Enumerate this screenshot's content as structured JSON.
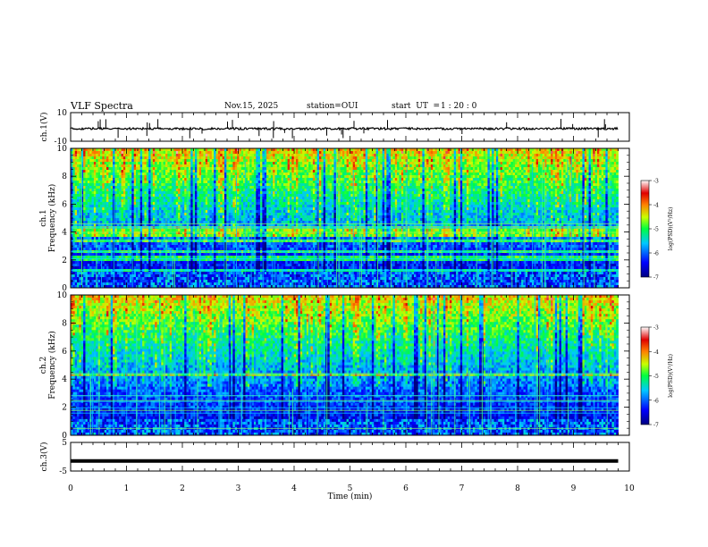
{
  "header": {
    "title": "VLF Spectra",
    "date": "Nov.15, 2025",
    "station": "station=OUI",
    "start_label": "start  UT  =",
    "start_value": "1 : 20 : 0"
  },
  "chart_data": [
    {
      "type": "line",
      "name": "ch1-waveform",
      "ylabel": "ch.1(V)",
      "ylim": [
        -10,
        10
      ],
      "yticks": [
        "10",
        "-10"
      ],
      "description_values": {
        "baseline": 0,
        "noise_amplitude": 1.5,
        "spike_max": 7
      },
      "x_range": [
        0,
        9.8
      ]
    },
    {
      "type": "heatmap",
      "name": "ch1-spectrogram",
      "ylabel_line1": "ch.1",
      "ylabel_line2": "Frequency (kHz)",
      "ylim": [
        0,
        10
      ],
      "yticks": [
        "0",
        "2",
        "4",
        "6",
        "8",
        "10"
      ],
      "x_range": [
        0,
        9.8
      ],
      "colorbar": {
        "label": "log(PSD)(V²/Hz)",
        "range": [
          -7,
          -3
        ],
        "ticks": [
          "-3",
          "-4",
          "-5",
          "-6",
          "-7"
        ]
      }
    },
    {
      "type": "heatmap",
      "name": "ch2-spectrogram",
      "ylabel_line1": "ch.2",
      "ylabel_line2": "Frequency (kHz)",
      "ylim": [
        0,
        10
      ],
      "yticks": [
        "0",
        "2",
        "4",
        "6",
        "8",
        "10"
      ],
      "x_range": [
        0,
        9.8
      ],
      "colorbar": {
        "label": "log(PSD)(V²/Hz)",
        "range": [
          -7,
          -3
        ],
        "ticks": [
          "-3",
          "-4",
          "-5",
          "-6",
          "-7"
        ]
      }
    },
    {
      "type": "line",
      "name": "ch3-waveform",
      "ylabel": "ch.3(V)",
      "ylim": [
        -5,
        5
      ],
      "yticks": [
        "5",
        "-5"
      ],
      "values_constant": -1.5,
      "x_range": [
        0,
        9.8
      ]
    }
  ],
  "x_axis": {
    "label": "Time (min)",
    "range": [
      0,
      10
    ],
    "ticks": [
      "0",
      "1",
      "2",
      "3",
      "4",
      "5",
      "6",
      "7",
      "8",
      "9",
      "10"
    ]
  }
}
